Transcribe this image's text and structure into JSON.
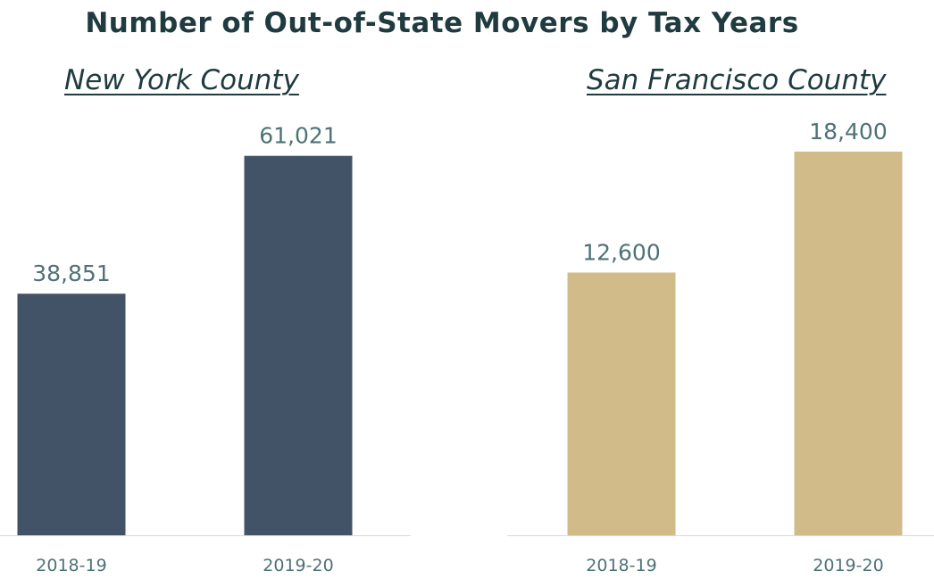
{
  "title": "Number of Out-of-State Movers by Tax Years",
  "chart_data": [
    {
      "type": "bar",
      "title": "New York County",
      "categories": [
        "2018-19",
        "2019-20"
      ],
      "values": [
        38851,
        61021
      ],
      "value_labels": [
        "38,851",
        "61,021"
      ],
      "ylim": [
        0,
        66000
      ],
      "color": "#435367",
      "grid": false,
      "legend": "none"
    },
    {
      "type": "bar",
      "title": "San Francisco County",
      "categories": [
        "2018-19",
        "2019-20"
      ],
      "values": [
        12600,
        18400
      ],
      "value_labels": [
        "12,600",
        "18,400"
      ],
      "ylim": [
        0,
        19680
      ],
      "color": "#d1bc89",
      "grid": false,
      "legend": "none"
    }
  ],
  "colors": {
    "title": "#1f3b3f",
    "labels": "#4f7277",
    "axis": "#d9d9d9"
  }
}
